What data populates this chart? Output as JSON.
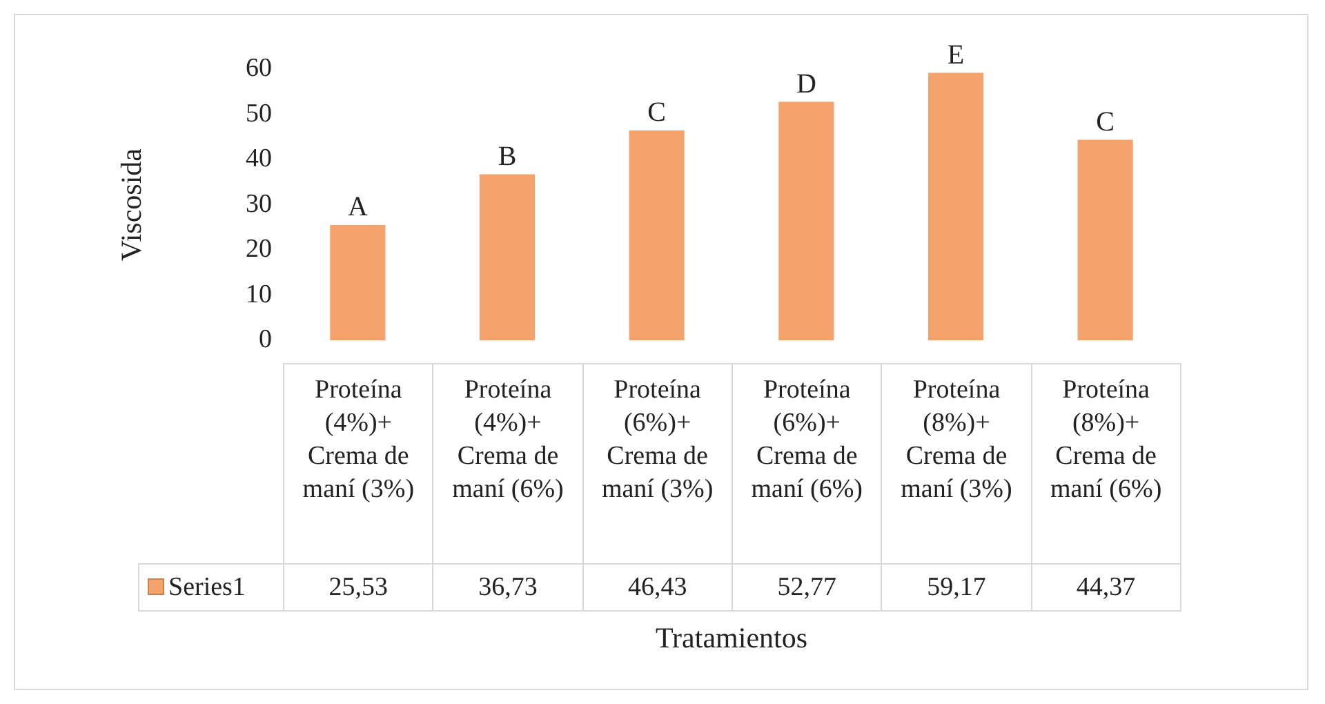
{
  "chart_data": {
    "type": "bar",
    "ylabel": "Viscosida",
    "xlabel": "Tratamientos",
    "categories": [
      "Proteína (4%)+ Crema de maní (3%)",
      "Proteína (4%)+ Crema de maní (6%)",
      "Proteína (6%)+ Crema de maní (3%)",
      "Proteína (6%)+ Crema de maní (6%)",
      "Proteína (8%)+ Crema de maní (3%)",
      "Proteína (8%)+ Crema de maní (6%)"
    ],
    "series": [
      {
        "name": "Series1",
        "color": "#f5a36c",
        "values": [
          25.53,
          36.73,
          46.43,
          52.77,
          59.17,
          44.37
        ],
        "value_labels": [
          "25,53",
          "36,73",
          "46,43",
          "52,77",
          "59,17",
          "44,37"
        ]
      }
    ],
    "ylim": [
      0,
      60
    ],
    "yticks": [
      0,
      10,
      20,
      30,
      40,
      50,
      60
    ],
    "grid": false,
    "annotations": [
      {
        "text": "A",
        "x": "Proteína (4%)+ Crema de maní (3%)",
        "y": 25.53
      },
      {
        "text": "B",
        "x": "Proteína (4%)+ Crema de maní (6%)",
        "y": 36.73
      },
      {
        "text": "C",
        "x": "Proteína (6%)+ Crema de maní (3%)",
        "y": 46.43
      },
      {
        "text": "D",
        "x": "Proteína (6%)+ Crema de maní (6%)",
        "y": 52.77
      },
      {
        "text": "E",
        "x": "Proteína (8%)+ Crema de maní (3%)",
        "y": 59.17
      },
      {
        "text": "C",
        "x": "Proteína (8%)+ Crema de maní (6%)",
        "y": 44.37
      }
    ]
  }
}
